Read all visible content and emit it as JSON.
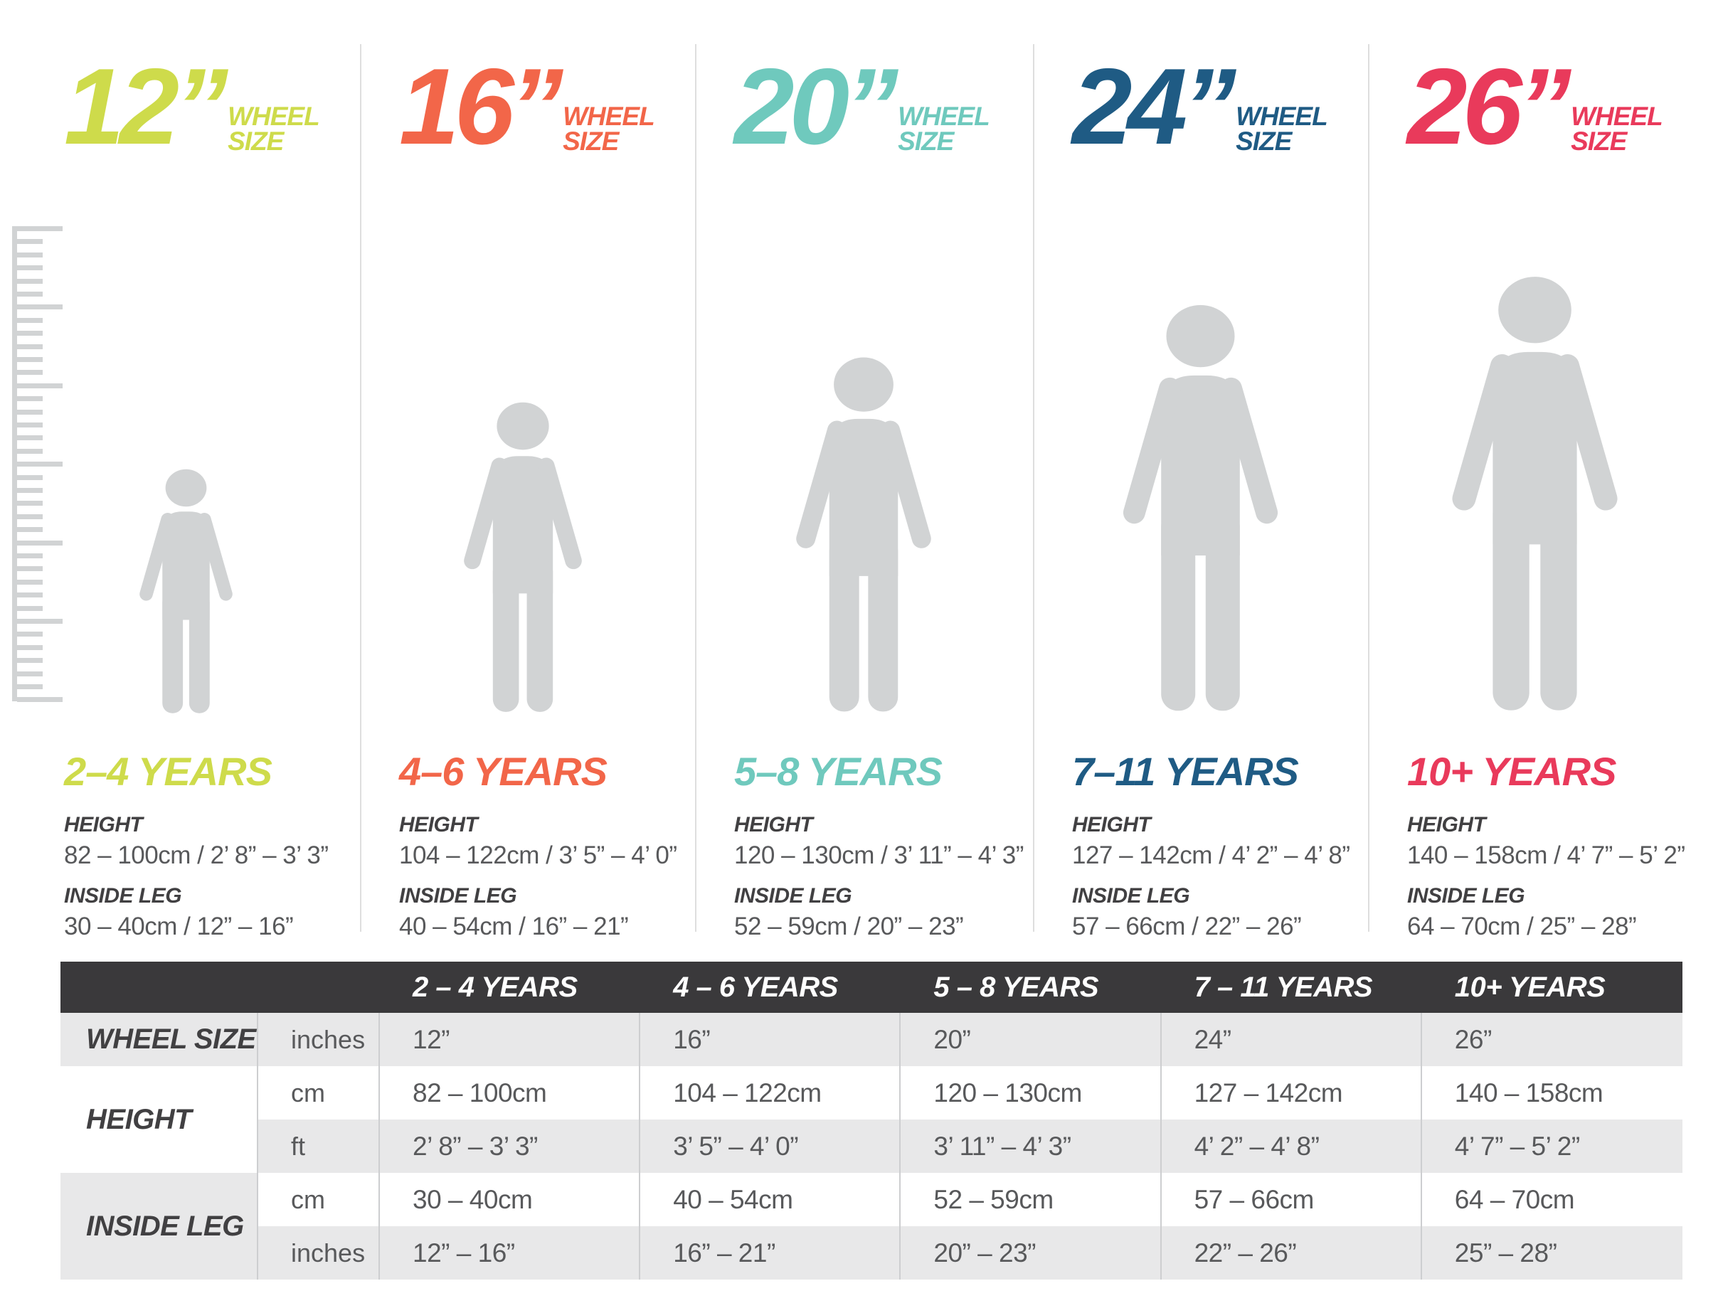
{
  "labels": {
    "wheel_line1": "WHEEL",
    "wheel_line2": "SIZE",
    "height": "HEIGHT",
    "inside_leg": "INSIDE LEG"
  },
  "columns": [
    {
      "size": "12”",
      "color": "#cedb4b",
      "age": "2–4 YEARS",
      "height_value": "82 – 100cm / 2’ 8” – 3’ 3”",
      "inside_leg_value": "30 – 40cm / 12” – 16”"
    },
    {
      "size": "16”",
      "color": "#f26649",
      "age": "4–6 YEARS",
      "height_value": "104 – 122cm / 3’ 5” – 4’ 0”",
      "inside_leg_value": "40 – 54cm / 16” – 21”"
    },
    {
      "size": "20”",
      "color": "#6fc9bd",
      "age": "5–8 YEARS",
      "height_value": "120 – 130cm / 3’ 11” – 4’ 3”",
      "inside_leg_value": "52 – 59cm / 20” – 23”"
    },
    {
      "size": "24”",
      "color": "#1f5b84",
      "age": "7–11 YEARS",
      "height_value": "127 – 142cm / 4’ 2” – 4’ 8”",
      "inside_leg_value": "57 – 66cm / 22” – 26”"
    },
    {
      "size": "26”",
      "color": "#e93a5b",
      "age": "10+ YEARS",
      "height_value": "140 – 158cm / 4’ 7” – 5’ 2”",
      "inside_leg_value": "64 – 70cm / 25” – 28”"
    }
  ],
  "table": {
    "headers": [
      "2 – 4 YEARS",
      "4 – 6 YEARS",
      "5 – 8 YEARS",
      "7 – 11 YEARS",
      "10+ YEARS"
    ],
    "wheel_size_label": "WHEEL SIZE",
    "height_label": "HEIGHT",
    "inside_leg_label": "INSIDE LEG",
    "rows": [
      {
        "unit": "inches",
        "values": [
          "12”",
          "16”",
          "20”",
          "24”",
          "26”"
        ]
      },
      {
        "unit": "cm",
        "values": [
          "82 – 100cm",
          "104 – 122cm",
          "120 – 130cm",
          "127 – 142cm",
          "140 – 158cm"
        ]
      },
      {
        "unit": "ft",
        "values": [
          "2’ 8” – 3’ 3”",
          "3’ 5” – 4’ 0”",
          "3’ 11” – 4’ 3”",
          "4’ 2” – 4’ 8”",
          "4’ 7” – 5’ 2”"
        ]
      },
      {
        "unit": "cm",
        "values": [
          "30 – 40cm",
          "40 – 54cm",
          "52 – 59cm",
          "57 – 66cm",
          "64 – 70cm"
        ]
      },
      {
        "unit": "inches",
        "values": [
          "12” – 16”",
          "16” – 21”",
          "20” – 23”",
          "22” – 26”",
          "25” – 28”"
        ]
      }
    ]
  },
  "chart_data": {
    "type": "table",
    "categories": [
      "2 – 4 YEARS",
      "4 – 6 YEARS",
      "5 – 8 YEARS",
      "7 – 11 YEARS",
      "10+ YEARS"
    ],
    "series": [
      {
        "name": "Wheel size (inches)",
        "values": [
          "12”",
          "16”",
          "20”",
          "24”",
          "26”"
        ]
      },
      {
        "name": "Height (cm)",
        "values": [
          "82 – 100",
          "104 – 122",
          "120 – 130",
          "127 – 142",
          "140 – 158"
        ]
      },
      {
        "name": "Height (ft)",
        "values": [
          "2’ 8” – 3’ 3”",
          "3’ 5” – 4’ 0”",
          "3’ 11” – 4’ 3”",
          "4’ 2” – 4’ 8”",
          "4’ 7” – 5’ 2”"
        ]
      },
      {
        "name": "Inside leg (cm)",
        "values": [
          "30 – 40",
          "40 – 54",
          "52 – 59",
          "57 – 66",
          "64 – 70"
        ]
      },
      {
        "name": "Inside leg (inches)",
        "values": [
          "12 – 16",
          "16 – 21",
          "20 – 23",
          "22 – 26",
          "25 – 28"
        ]
      }
    ],
    "legend_colors": [
      "#cedb4b",
      "#f26649",
      "#6fc9bd",
      "#1f5b84",
      "#e93a5b"
    ],
    "layout": "five columns with growing child silhouettes above a summary table"
  }
}
